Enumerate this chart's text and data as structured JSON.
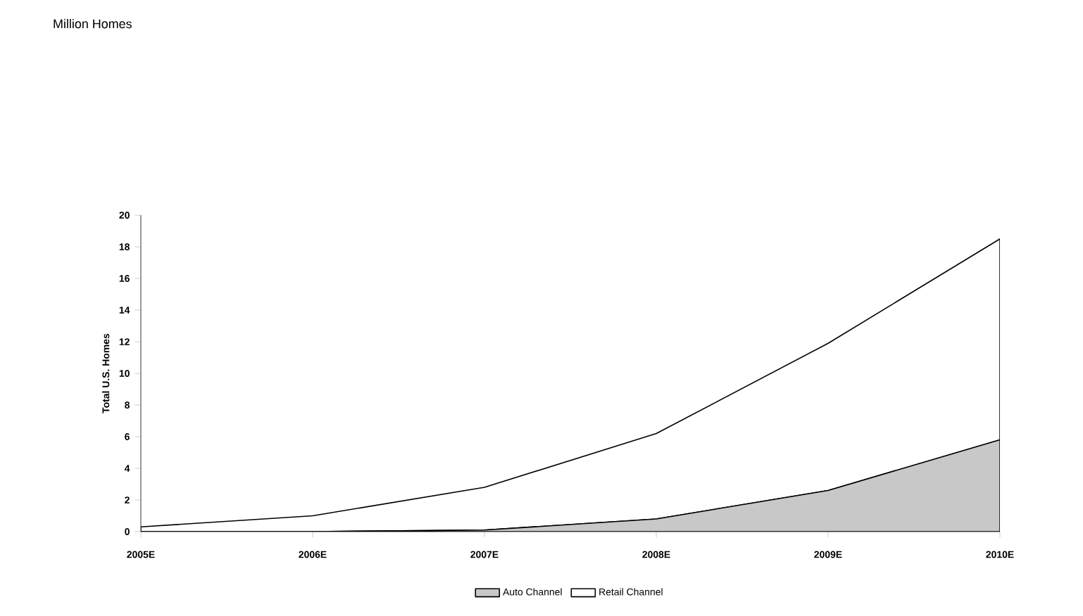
{
  "chart_data": {
    "type": "area",
    "title": "Million Homes",
    "ylabel": "Total U.S. Homes",
    "categories": [
      "2005E",
      "2006E",
      "2007E",
      "2008E",
      "2009E",
      "2010E"
    ],
    "stacked": true,
    "series": [
      {
        "name": "Auto Channel",
        "color": "#c8c8c8",
        "values": [
          0,
          0,
          0.1,
          0.8,
          2.6,
          5.8
        ]
      },
      {
        "name": "Retail Channel",
        "color": "#ffffff",
        "values": [
          0.3,
          1.0,
          2.7,
          5.4,
          9.3,
          12.7
        ]
      }
    ],
    "ylim": [
      0,
      20
    ],
    "yticks": [
      0,
      2,
      4,
      6,
      8,
      10,
      12,
      14,
      16,
      18,
      20
    ],
    "legend": "bottom",
    "grid": false
  }
}
